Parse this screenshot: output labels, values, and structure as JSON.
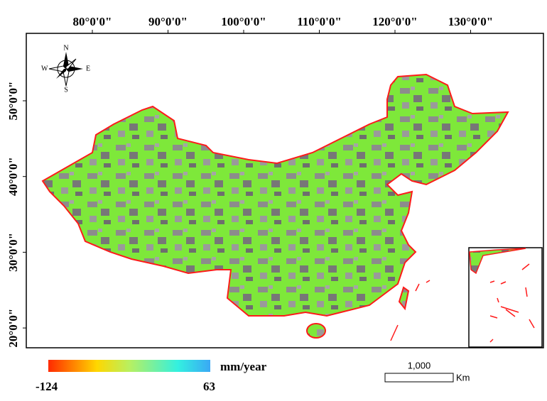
{
  "map": {
    "lon_labels": [
      "80°0'0\"",
      "90°0'0\"",
      "100°0'0\"",
      "110°0'0\"",
      "120°0'0\"",
      "130°0'0\""
    ],
    "lat_labels": [
      "50°0'0\"",
      "40°0'0\"",
      "30°0'0\"",
      "20°0'0\""
    ],
    "compass": {
      "n": "N",
      "s": "S",
      "e": "E",
      "w": "W"
    },
    "legend": {
      "unit": "mm/year",
      "min": -124,
      "max": 63
    },
    "scale_bar": {
      "distance": "1,000",
      "unit": "Km"
    }
  }
}
